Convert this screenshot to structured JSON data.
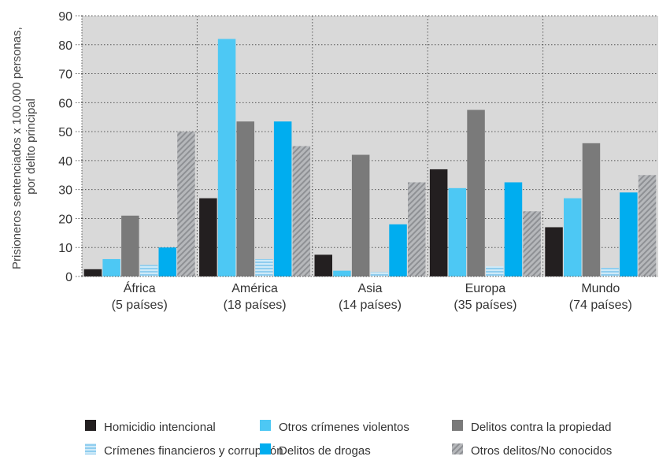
{
  "chart_data": {
    "type": "bar",
    "title": "",
    "ylabel_lines": [
      "Prisioneros sentenciados x 100.000 personas,",
      "por delito principal"
    ],
    "ylim": [
      0,
      90
    ],
    "yticks": [
      0,
      10,
      20,
      30,
      40,
      50,
      60,
      70,
      80,
      90
    ],
    "grid": true,
    "legend_position": "bottom",
    "categories": [
      {
        "name": "África",
        "sub": "(5 países)"
      },
      {
        "name": "América",
        "sub": "(18 países)"
      },
      {
        "name": "Asia",
        "sub": "(14 países)"
      },
      {
        "name": "Europa",
        "sub": "(35 países)"
      },
      {
        "name": "Mundo",
        "sub": "(74 países)"
      }
    ],
    "series": [
      {
        "name": "Homicidio intencional",
        "color": "#231f20",
        "pattern": "solid",
        "values": [
          2.5,
          27,
          7.5,
          37,
          17
        ]
      },
      {
        "name": "Otros crímenes violentos",
        "color": "#4dc8f4",
        "pattern": "solid",
        "values": [
          6,
          82,
          2,
          30.5,
          27
        ]
      },
      {
        "name": "Delitos contra la propiedad",
        "color": "#7a7a7a",
        "pattern": "solid",
        "values": [
          21,
          53.5,
          42,
          57.5,
          46
        ]
      },
      {
        "name": "Crímenes financieros y corrupción",
        "color": "#a9d8ef",
        "pattern": "hlines",
        "values": [
          4,
          6,
          1.5,
          3.5,
          3
        ]
      },
      {
        "name": "Delitos de drogas",
        "color": "#00adef",
        "pattern": "solid",
        "values": [
          10,
          53.5,
          18,
          32.5,
          29
        ]
      },
      {
        "name": "Otros delitos/No conocidos",
        "color": "#a7a9ac",
        "pattern": "hatch",
        "values": [
          50,
          45,
          32.5,
          22.5,
          35
        ]
      }
    ]
  }
}
